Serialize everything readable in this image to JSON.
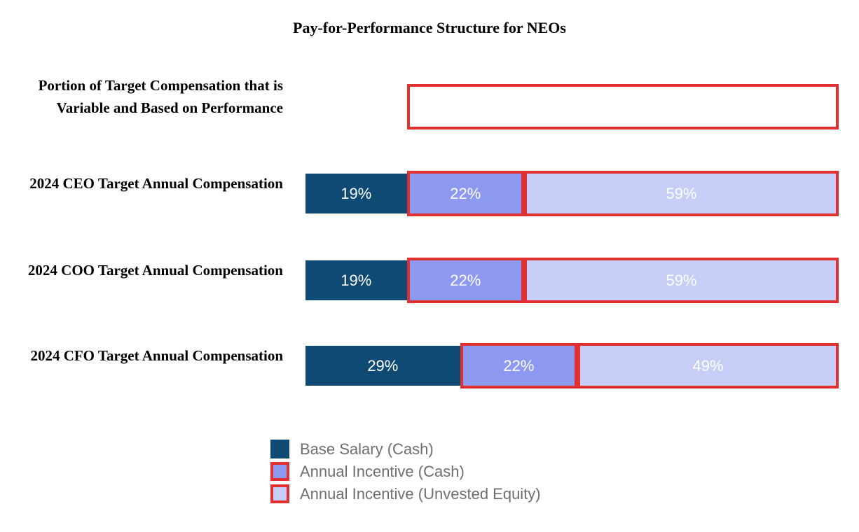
{
  "title": "Pay-for-Performance Structure for NEOs",
  "colors": {
    "base_salary": "#0e4a73",
    "annual_incentive_cash": "#8d99f1",
    "annual_incentive_equity": "#c6cef8",
    "red_outline": "#e03030",
    "legend_text": "#6e6e6e",
    "bar_value_text": "#ffffff"
  },
  "variable_row": {
    "label": "Portion of Target Compensation that is Variable and Based on Performance",
    "box_left_pct": 19,
    "box_width_pct": 81
  },
  "chart_data": {
    "type": "bar",
    "orientation": "horizontal",
    "stacked": true,
    "unit": "percent",
    "xlim": [
      0,
      100
    ],
    "grid": false,
    "legend_position": "bottom-left",
    "categories": [
      "2024 CEO Target Annual Compensation",
      "2024 COO Target Annual Compensation",
      "2024 CFO Target Annual Compensation"
    ],
    "series": [
      {
        "name": "Base Salary (Cash)",
        "color": "#0e4a73",
        "red_outline": false,
        "values": [
          19,
          19,
          29
        ]
      },
      {
        "name": "Annual Incentive (Cash)",
        "color": "#8d99f1",
        "red_outline": true,
        "values": [
          22,
          22,
          22
        ]
      },
      {
        "name": "Annual Incentive (Unvested Equity)",
        "color": "#c6cef8",
        "red_outline": true,
        "values": [
          59,
          59,
          49
        ]
      }
    ],
    "value_labels": [
      [
        "19%",
        "22%",
        "59%"
      ],
      [
        "19%",
        "22%",
        "59%"
      ],
      [
        "29%",
        "22%",
        "49%"
      ]
    ]
  }
}
